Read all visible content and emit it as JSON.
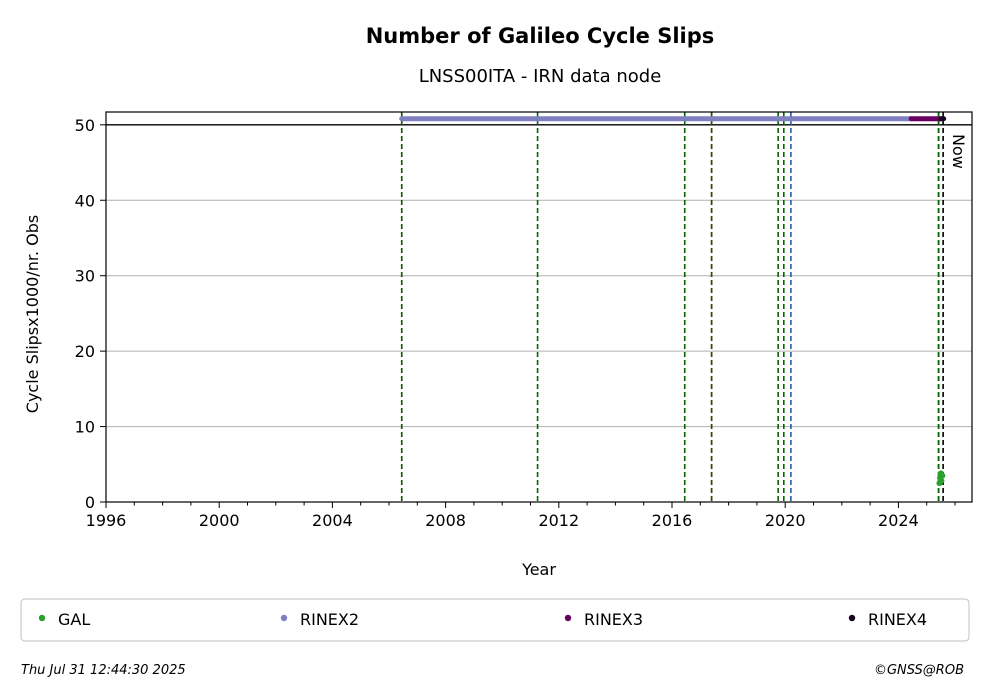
{
  "chart_data": {
    "type": "scatter",
    "title": "Number of Galileo Cycle Slips",
    "subtitle": "LNSS00ITA - IRN data node",
    "xlabel": "Year",
    "ylabel": "Cycle Slipsx1000/nr. Obs",
    "xlim": [
      1996,
      2026.6
    ],
    "ylim": [
      0,
      51.7
    ],
    "x_ticks": [
      1996,
      2000,
      2004,
      2008,
      2012,
      2016,
      2020,
      2024
    ],
    "y_ticks": [
      0,
      10,
      20,
      30,
      40,
      50
    ],
    "grid": "horizontal",
    "threshold_line": 50,
    "now_label": "Now",
    "now_x": 2025.58,
    "vertical_lines": [
      {
        "x": 2006.45,
        "color": "#cc0000",
        "style": "dashed"
      },
      {
        "x": 2006.45,
        "color": "#006400",
        "style": "dashed"
      },
      {
        "x": 2011.25,
        "color": "#006400",
        "style": "dashed"
      },
      {
        "x": 2016.45,
        "color": "#006400",
        "style": "dashed"
      },
      {
        "x": 2017.4,
        "color": "#cc0000",
        "style": "dashed"
      },
      {
        "x": 2017.4,
        "color": "#006400",
        "style": "dashed"
      },
      {
        "x": 2019.75,
        "color": "#006400",
        "style": "dashed"
      },
      {
        "x": 2019.95,
        "color": "#006400",
        "style": "dashed"
      },
      {
        "x": 2020.2,
        "color": "#1f5fa8",
        "style": "dashed"
      },
      {
        "x": 2025.42,
        "color": "#cc0000",
        "style": "dashed"
      },
      {
        "x": 2025.42,
        "color": "#006400",
        "style": "dashed"
      },
      {
        "x": 2025.58,
        "color": "#000000",
        "style": "dashed"
      }
    ],
    "series": [
      {
        "name": "GAL",
        "color": "#2ca02c",
        "points": [
          [
            2025.45,
            2.5
          ],
          [
            2025.47,
            3.2
          ],
          [
            2025.5,
            3.8
          ],
          [
            2025.52,
            2.8
          ],
          [
            2025.55,
            3.5
          ]
        ]
      },
      {
        "name": "RINEX2",
        "color": "#8080c0",
        "ranges": [
          [
            2006.45,
            2024.45
          ]
        ],
        "y": 50.8
      },
      {
        "name": "RINEX3",
        "color": "#6a0060",
        "ranges": [
          [
            2024.45,
            2025.55
          ]
        ],
        "y": 50.8
      },
      {
        "name": "RINEX4",
        "color": "#1a0020",
        "ranges": [
          [
            2025.5,
            2025.6
          ]
        ],
        "y": 50.8
      }
    ]
  },
  "footer": {
    "timestamp": "Thu Jul 31 12:44:30 2025",
    "credit": "©GNSS@ROB"
  }
}
